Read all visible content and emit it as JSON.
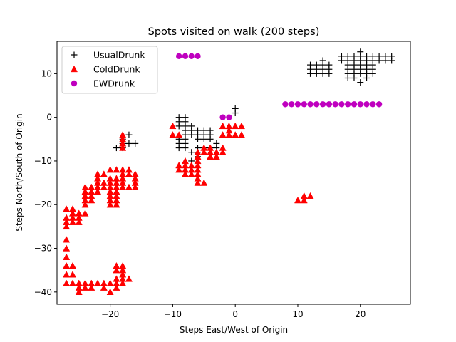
{
  "chart_data": {
    "type": "scatter",
    "title": "Spots visited on walk (200 steps)",
    "xlabel": "Steps East/West of Origin",
    "ylabel": "Steps North/South of Origin",
    "xlim": [
      -28.5,
      28.0
    ],
    "ylim": [
      -42.8,
      17.4
    ],
    "xticks": [
      -20,
      -10,
      0,
      10,
      20
    ],
    "xtick_labels": [
      "−20",
      "−10",
      "0",
      "10",
      "20"
    ],
    "yticks": [
      -40,
      -30,
      -20,
      -10,
      0,
      10
    ],
    "ytick_labels": [
      "−40",
      "−30",
      "−20",
      "−10",
      "0",
      "10"
    ],
    "grid": false,
    "legend_position": "top-left",
    "series": [
      {
        "name": "UsualDrunk",
        "marker": "plus",
        "color": "#000000",
        "points": [
          [
            -19,
            -7
          ],
          [
            -18,
            -7
          ],
          [
            -18,
            -6
          ],
          [
            -18,
            -5
          ],
          [
            -17,
            -6
          ],
          [
            -17,
            -4
          ],
          [
            -16,
            -6
          ],
          [
            -9,
            0
          ],
          [
            -9,
            -1
          ],
          [
            -8,
            0
          ],
          [
            -8,
            -1
          ],
          [
            -9,
            -2
          ],
          [
            -8,
            -2
          ],
          [
            -7,
            -2
          ],
          [
            -7,
            -3
          ],
          [
            -6,
            -3
          ],
          [
            -5,
            -3
          ],
          [
            -4,
            -3
          ],
          [
            -8,
            -3
          ],
          [
            -8,
            -4
          ],
          [
            -7,
            -4
          ],
          [
            -6,
            -4
          ],
          [
            -5,
            -4
          ],
          [
            -4,
            -4
          ],
          [
            -9,
            -5
          ],
          [
            -8,
            -5
          ],
          [
            -6,
            -5
          ],
          [
            -5,
            -5
          ],
          [
            -4,
            -5
          ],
          [
            -9,
            -6
          ],
          [
            -8,
            -6
          ],
          [
            -9,
            -7
          ],
          [
            -8,
            -7
          ],
          [
            -6,
            -7
          ],
          [
            -5,
            -7
          ],
          [
            -4,
            -7
          ],
          [
            -6,
            -8
          ],
          [
            -3,
            -6
          ],
          [
            -3,
            -7
          ],
          [
            -7,
            -8
          ],
          [
            -6,
            -9
          ],
          [
            -7,
            -10
          ],
          [
            0,
            2
          ],
          [
            0,
            1
          ],
          [
            12,
            10
          ],
          [
            12,
            11
          ],
          [
            12,
            12
          ],
          [
            13,
            10
          ],
          [
            13,
            11
          ],
          [
            13,
            12
          ],
          [
            14,
            10
          ],
          [
            14,
            11
          ],
          [
            14,
            12
          ],
          [
            14,
            13
          ],
          [
            15,
            10
          ],
          [
            15,
            11
          ],
          [
            15,
            12
          ],
          [
            17,
            13
          ],
          [
            17,
            14
          ],
          [
            18,
            13
          ],
          [
            18,
            14
          ],
          [
            18,
            12
          ],
          [
            18,
            11
          ],
          [
            18,
            10
          ],
          [
            18,
            9
          ],
          [
            19,
            9
          ],
          [
            19,
            10
          ],
          [
            19,
            11
          ],
          [
            19,
            12
          ],
          [
            19,
            13
          ],
          [
            19,
            14
          ],
          [
            20,
            10
          ],
          [
            20,
            11
          ],
          [
            20,
            12
          ],
          [
            20,
            13
          ],
          [
            20,
            14
          ],
          [
            20,
            15
          ],
          [
            21,
            10
          ],
          [
            21,
            11
          ],
          [
            21,
            12
          ],
          [
            21,
            13
          ],
          [
            21,
            14
          ],
          [
            22,
            10
          ],
          [
            22,
            11
          ],
          [
            22,
            12
          ],
          [
            22,
            13
          ],
          [
            22,
            14
          ],
          [
            23,
            13
          ],
          [
            23,
            14
          ],
          [
            24,
            13
          ],
          [
            24,
            14
          ],
          [
            25,
            13
          ],
          [
            25,
            14
          ],
          [
            21,
            9
          ],
          [
            20,
            8
          ]
        ]
      },
      {
        "name": "ColdDrunk",
        "marker": "triangle",
        "color": "#ff0000",
        "points": [
          [
            -27,
            -21
          ],
          [
            -27,
            -23
          ],
          [
            -27,
            -24
          ],
          [
            -27,
            -25
          ],
          [
            -27,
            -28
          ],
          [
            -27,
            -30
          ],
          [
            -27,
            -32
          ],
          [
            -27,
            -34
          ],
          [
            -27,
            -36
          ],
          [
            -27,
            -38
          ],
          [
            -26,
            -21
          ],
          [
            -26,
            -22
          ],
          [
            -26,
            -23
          ],
          [
            -26,
            -24
          ],
          [
            -26,
            -34
          ],
          [
            -26,
            -36
          ],
          [
            -26,
            -38
          ],
          [
            -25,
            -22
          ],
          [
            -25,
            -23
          ],
          [
            -25,
            -24
          ],
          [
            -25,
            -38
          ],
          [
            -25,
            -39
          ],
          [
            -25,
            -40
          ],
          [
            -24,
            -16
          ],
          [
            -24,
            -17
          ],
          [
            -24,
            -18
          ],
          [
            -24,
            -19
          ],
          [
            -24,
            -20
          ],
          [
            -24,
            -22
          ],
          [
            -24,
            -38
          ],
          [
            -24,
            -39
          ],
          [
            -23,
            -16
          ],
          [
            -23,
            -17
          ],
          [
            -23,
            -18
          ],
          [
            -23,
            -19
          ],
          [
            -23,
            -38
          ],
          [
            -23,
            -39
          ],
          [
            -22,
            -13
          ],
          [
            -22,
            -14
          ],
          [
            -22,
            -15
          ],
          [
            -22,
            -16
          ],
          [
            -22,
            -17
          ],
          [
            -22,
            -38
          ],
          [
            -21,
            -13
          ],
          [
            -21,
            -15
          ],
          [
            -21,
            -16
          ],
          [
            -21,
            -38
          ],
          [
            -21,
            -39
          ],
          [
            -20,
            -12
          ],
          [
            -20,
            -14
          ],
          [
            -20,
            -15
          ],
          [
            -20,
            -16
          ],
          [
            -20,
            -17
          ],
          [
            -20,
            -18
          ],
          [
            -20,
            -19
          ],
          [
            -20,
            -20
          ],
          [
            -20,
            -38
          ],
          [
            -20,
            -40
          ],
          [
            -19,
            -12
          ],
          [
            -19,
            -14
          ],
          [
            -19,
            -15
          ],
          [
            -19,
            -16
          ],
          [
            -19,
            -17
          ],
          [
            -19,
            -18
          ],
          [
            -19,
            -19
          ],
          [
            -19,
            -20
          ],
          [
            -19,
            -34
          ],
          [
            -19,
            -35
          ],
          [
            -19,
            -37
          ],
          [
            -19,
            -38
          ],
          [
            -19,
            -39
          ],
          [
            -18,
            -4
          ],
          [
            -18,
            -5
          ],
          [
            -18,
            -6
          ],
          [
            -18,
            -7
          ],
          [
            -18,
            -12
          ],
          [
            -18,
            -13
          ],
          [
            -18,
            -14
          ],
          [
            -18,
            -15
          ],
          [
            -18,
            -16
          ],
          [
            -18,
            -34
          ],
          [
            -18,
            -35
          ],
          [
            -18,
            -36
          ],
          [
            -18,
            -37
          ],
          [
            -18,
            -38
          ],
          [
            -17,
            -12
          ],
          [
            -17,
            -13
          ],
          [
            -17,
            -16
          ],
          [
            -17,
            -37
          ],
          [
            -16,
            -13
          ],
          [
            -16,
            -14
          ],
          [
            -16,
            -15
          ],
          [
            -16,
            -16
          ],
          [
            -10,
            -2
          ],
          [
            -10,
            -4
          ],
          [
            -9,
            -4
          ],
          [
            -9,
            -11
          ],
          [
            -9,
            -12
          ],
          [
            -8,
            -10
          ],
          [
            -8,
            -11
          ],
          [
            -8,
            -12
          ],
          [
            -8,
            -13
          ],
          [
            -7,
            -11
          ],
          [
            -7,
            -12
          ],
          [
            -7,
            -13
          ],
          [
            -6,
            -8
          ],
          [
            -6,
            -9
          ],
          [
            -6,
            -10
          ],
          [
            -6,
            -11
          ],
          [
            -6,
            -12
          ],
          [
            -6,
            -13
          ],
          [
            -6,
            -14
          ],
          [
            -6,
            -15
          ],
          [
            -5,
            -7
          ],
          [
            -5,
            -8
          ],
          [
            -5,
            -15
          ],
          [
            -4,
            -7
          ],
          [
            -4,
            -8
          ],
          [
            -4,
            -9
          ],
          [
            -3,
            -8
          ],
          [
            -3,
            -9
          ],
          [
            -2,
            -7
          ],
          [
            -2,
            -8
          ],
          [
            -2,
            -2
          ],
          [
            -2,
            -4
          ],
          [
            -1,
            -2
          ],
          [
            -1,
            -3
          ],
          [
            -1,
            -4
          ],
          [
            0,
            -2
          ],
          [
            0,
            -4
          ],
          [
            1,
            -4
          ],
          [
            1,
            -2
          ],
          [
            10,
            -19
          ],
          [
            11,
            -19
          ],
          [
            11,
            -18
          ],
          [
            12,
            -18
          ]
        ]
      },
      {
        "name": "EWDrunk",
        "marker": "circle",
        "color": "#bf00bf",
        "points": [
          [
            -9,
            14
          ],
          [
            -8,
            14
          ],
          [
            -7,
            14
          ],
          [
            -6,
            14
          ],
          [
            -2,
            0
          ],
          [
            -1,
            0
          ],
          [
            8,
            3
          ],
          [
            9,
            3
          ],
          [
            10,
            3
          ],
          [
            11,
            3
          ],
          [
            12,
            3
          ],
          [
            13,
            3
          ],
          [
            14,
            3
          ],
          [
            15,
            3
          ],
          [
            16,
            3
          ],
          [
            17,
            3
          ],
          [
            18,
            3
          ],
          [
            19,
            3
          ],
          [
            20,
            3
          ],
          [
            21,
            3
          ],
          [
            22,
            3
          ],
          [
            23,
            3
          ]
        ]
      }
    ]
  }
}
